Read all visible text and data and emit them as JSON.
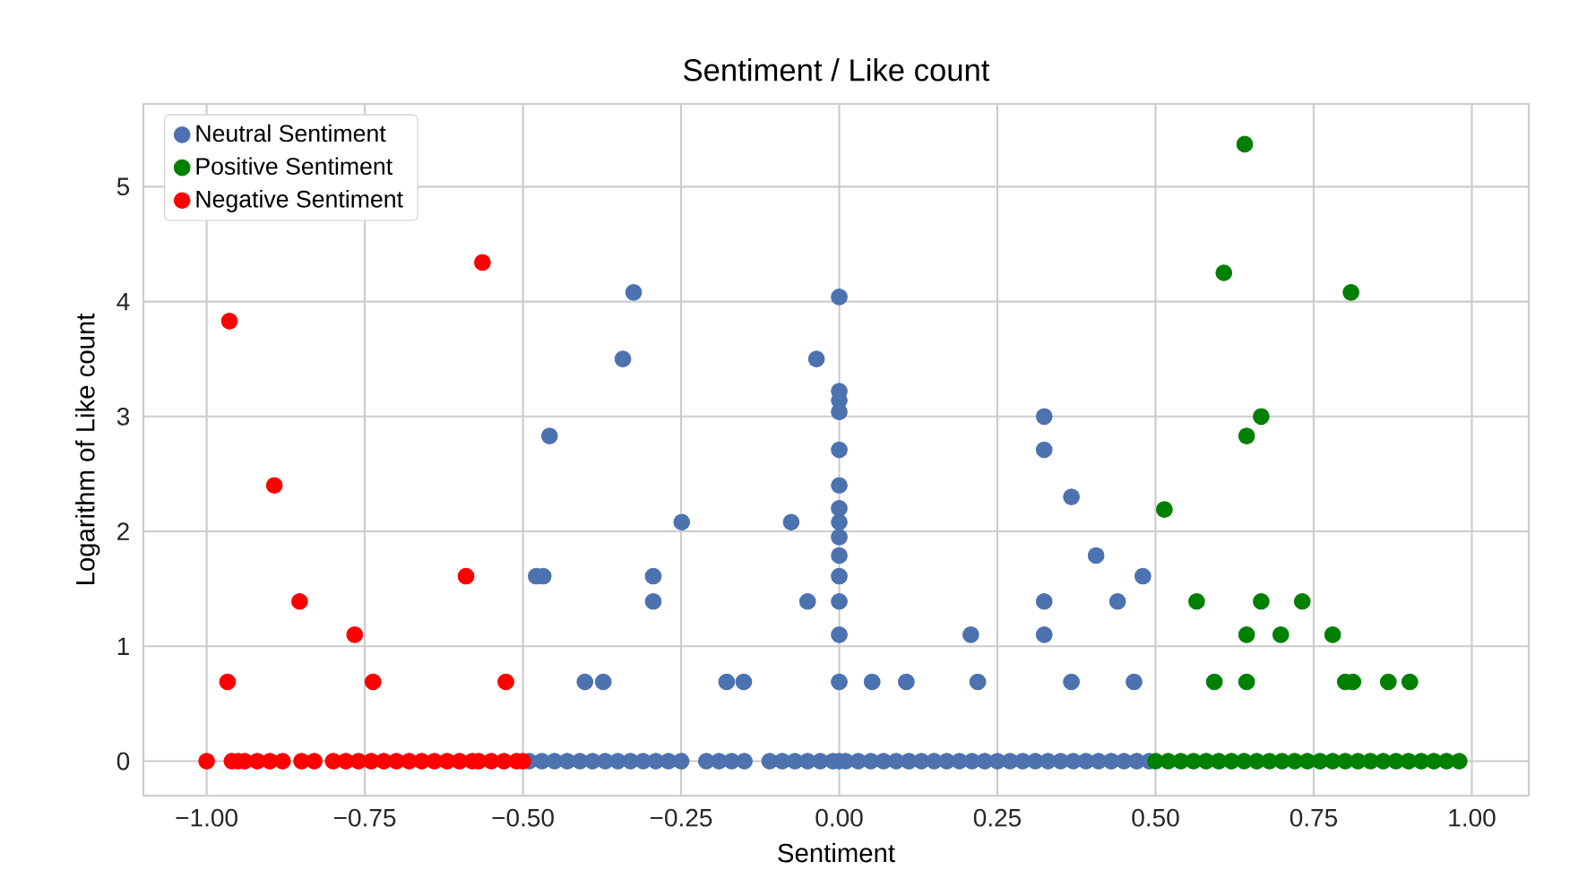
{
  "chart_data": {
    "type": "scatter",
    "title": "Sentiment / Like count",
    "xlabel": "Sentiment",
    "ylabel": "Logarithm of Like count",
    "xlim": [
      -1.1,
      1.09
    ],
    "ylim": [
      -0.3,
      5.72
    ],
    "xticks": [
      {
        "value": -1,
        "label": "−1.00"
      },
      {
        "value": -0.75,
        "label": "−0.75"
      },
      {
        "value": -0.5,
        "label": "−0.50"
      },
      {
        "value": -0.25,
        "label": "−0.25"
      },
      {
        "value": 0,
        "label": "0.00"
      },
      {
        "value": 0.25,
        "label": "0.25"
      },
      {
        "value": 0.5,
        "label": "0.50"
      },
      {
        "value": 0.75,
        "label": "0.75"
      },
      {
        "value": 1,
        "label": "1.00"
      }
    ],
    "yticks": [
      0,
      1,
      2,
      3,
      4,
      5
    ],
    "grid": true,
    "legend": "top left",
    "series": [
      {
        "name": "Neutral Sentiment",
        "color": "#4c72b0",
        "x": [
          -0.325,
          -0.342,
          -0.458,
          -0.249,
          -0.076,
          -0.479,
          -0.468,
          -0.294,
          -0.294,
          -0.05,
          -0.402,
          -0.373,
          -0.178,
          -0.151,
          -0.036,
          0,
          0,
          0,
          0,
          0,
          0,
          0,
          0,
          0,
          0,
          0,
          0,
          0,
          0,
          0.052,
          0.106,
          0.208,
          0.219,
          0.324,
          0.324,
          0.367,
          0.324,
          0.324,
          0.367,
          0.406,
          0.44,
          0.48,
          0.466,
          -0.49,
          -0.47,
          -0.45,
          -0.43,
          -0.41,
          -0.39,
          -0.37,
          -0.35,
          -0.33,
          -0.31,
          -0.29,
          -0.27,
          -0.25,
          -0.21,
          -0.19,
          -0.17,
          -0.15,
          -0.11,
          -0.09,
          -0.07,
          -0.05,
          -0.03,
          -0.01,
          0,
          0.01,
          0.03,
          0.05,
          0.07,
          0.09,
          0.11,
          0.13,
          0.15,
          0.17,
          0.19,
          0.21,
          0.23,
          0.25,
          0.27,
          0.29,
          0.31,
          0.33,
          0.35,
          0.37,
          0.39,
          0.41,
          0.43,
          0.45,
          0.47,
          0.49
        ],
        "values": [
          4.08,
          3.5,
          2.83,
          2.08,
          2.08,
          1.61,
          1.61,
          1.61,
          1.39,
          1.39,
          0.69,
          0.69,
          0.69,
          0.69,
          3.5,
          4.04,
          3.22,
          3.14,
          3.04,
          2.71,
          2.4,
          2.2,
          2.08,
          1.95,
          1.79,
          1.61,
          1.39,
          1.1,
          0.69,
          0.69,
          0.69,
          1.1,
          0.69,
          3.0,
          2.71,
          2.3,
          1.39,
          1.1,
          0.69,
          1.79,
          1.39,
          1.61,
          0.69,
          0,
          0,
          0,
          0,
          0,
          0,
          0,
          0,
          0,
          0,
          0,
          0,
          0,
          0,
          0,
          0,
          0,
          0,
          0,
          0,
          0,
          0,
          0,
          0,
          0,
          0,
          0,
          0,
          0,
          0,
          0,
          0,
          0,
          0,
          0,
          0,
          0,
          0,
          0,
          0,
          0,
          0,
          0,
          0,
          0,
          0,
          0,
          0,
          0
        ]
      },
      {
        "name": "Positive Sentiment",
        "color": "#008000",
        "x": [
          0.641,
          0.608,
          0.809,
          0.667,
          0.644,
          0.514,
          0.565,
          0.667,
          0.732,
          0.644,
          0.698,
          0.78,
          0.593,
          0.644,
          0.8,
          0.812,
          0.868,
          0.902,
          0.5,
          0.52,
          0.54,
          0.56,
          0.58,
          0.6,
          0.62,
          0.64,
          0.66,
          0.68,
          0.7,
          0.72,
          0.74,
          0.76,
          0.78,
          0.8,
          0.82,
          0.84,
          0.86,
          0.88,
          0.9,
          0.92,
          0.94,
          0.96,
          0.98
        ],
        "values": [
          5.37,
          4.25,
          4.08,
          3.0,
          2.83,
          2.19,
          1.39,
          1.39,
          1.39,
          1.1,
          1.1,
          1.1,
          0.69,
          0.69,
          0.69,
          0.69,
          0.69,
          0.69,
          0,
          0,
          0,
          0,
          0,
          0,
          0,
          0,
          0,
          0,
          0,
          0,
          0,
          0,
          0,
          0,
          0,
          0,
          0,
          0,
          0,
          0,
          0,
          0,
          0
        ]
      },
      {
        "name": "Negative Sentiment",
        "color": "#ff0000",
        "x": [
          -1.0,
          -0.967,
          -0.964,
          -0.893,
          -0.853,
          -0.766,
          -0.737,
          -0.59,
          -0.564,
          -0.527,
          -0.96,
          -0.95,
          -0.94,
          -0.92,
          -0.9,
          -0.88,
          -0.85,
          -0.83,
          -0.8,
          -0.78,
          -0.76,
          -0.74,
          -0.72,
          -0.7,
          -0.68,
          -0.66,
          -0.64,
          -0.62,
          -0.6,
          -0.58,
          -0.57,
          -0.55,
          -0.53,
          -0.51,
          -0.5
        ],
        "values": [
          0,
          0.69,
          3.83,
          2.4,
          1.39,
          1.1,
          0.69,
          1.61,
          4.34,
          0.69,
          0,
          0,
          0,
          0,
          0,
          0,
          0,
          0,
          0,
          0,
          0,
          0,
          0,
          0,
          0,
          0,
          0,
          0,
          0,
          0,
          0,
          0,
          0,
          0,
          0
        ]
      }
    ]
  }
}
